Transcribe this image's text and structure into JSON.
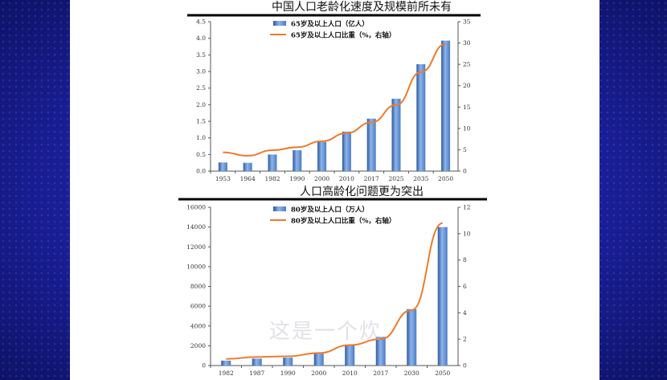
{
  "colors": {
    "bar": "#4a7cc4",
    "bar_dark": "#2d5a9e",
    "line": "#f07a2a",
    "axis": "#555555",
    "rule": "#000000"
  },
  "watermark": "这是一个炊",
  "chart_data": [
    {
      "type": "bar",
      "title": "中国人口老龄化速度及规模前所未有",
      "categories": [
        "1953",
        "1964",
        "1982",
        "1990",
        "2000",
        "2010",
        "2017",
        "2025",
        "2035",
        "2050"
      ],
      "series": [
        {
          "name": "65岁及以上人口（亿人）",
          "type": "bar",
          "axis": "left",
          "values": [
            0.26,
            0.25,
            0.5,
            0.63,
            0.88,
            1.19,
            1.58,
            2.18,
            3.22,
            3.93
          ]
        },
        {
          "name": "65岁及以上人口比重（%，右轴）",
          "type": "line",
          "axis": "right",
          "values": [
            4.4,
            3.6,
            4.9,
            5.6,
            7.0,
            8.9,
            11.4,
            15.5,
            23.2,
            29.8
          ]
        }
      ],
      "ylim": [
        0,
        4.5
      ],
      "yticks": [
        "0.0",
        "0.5",
        "1.0",
        "1.5",
        "2.0",
        "2.5",
        "3.0",
        "3.5",
        "4.0",
        "4.5"
      ],
      "y2lim": [
        0,
        35
      ],
      "y2ticks": [
        "0",
        "5",
        "10",
        "15",
        "20",
        "25",
        "30",
        "35"
      ],
      "legend": "top-center"
    },
    {
      "type": "bar",
      "title": "人口高龄化问题更为突出",
      "categories": [
        "1982",
        "1987",
        "1990",
        "2000",
        "2010",
        "2017",
        "2030",
        "2050"
      ],
      "series": [
        {
          "name": "80岁及以上人口（万人）",
          "type": "bar",
          "axis": "left",
          "values": [
            500,
            700,
            800,
            1200,
            2100,
            2900,
            5700,
            14000
          ]
        },
        {
          "name": "80岁及以上人口比重（%，右轴）",
          "type": "line",
          "axis": "right",
          "values": [
            0.5,
            0.65,
            0.7,
            0.95,
            1.55,
            2.0,
            4.2,
            10.8
          ]
        }
      ],
      "ylim": [
        0,
        16000
      ],
      "yticks": [
        "0",
        "2000",
        "4000",
        "6000",
        "8000",
        "10000",
        "12000",
        "14000",
        "16000"
      ],
      "y2lim": [
        0,
        12
      ],
      "y2ticks": [
        "0",
        "2",
        "4",
        "6",
        "8",
        "10",
        "12"
      ],
      "legend": "top-center"
    }
  ]
}
